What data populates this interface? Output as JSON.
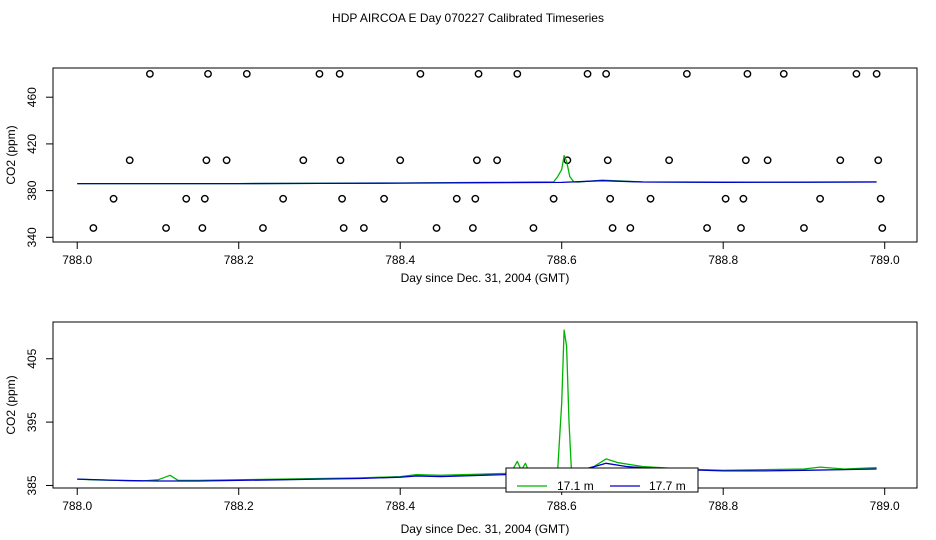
{
  "title": "HDP AIRCOA E  Day 070227  Calibrated Timeseries",
  "colors": {
    "green": "#00b300",
    "blue": "#0000cc",
    "axis": "#000000"
  },
  "chart_data": [
    {
      "type": "scatter",
      "xlabel": "Day since Dec. 31, 2004 (GMT)",
      "ylabel": "CO2 (ppm)",
      "xlim": [
        787.97,
        789.04
      ],
      "ylim": [
        336,
        485
      ],
      "xticks": [
        788.0,
        788.2,
        788.4,
        788.6,
        788.8,
        789.0
      ],
      "xtick_labels": [
        "788.0",
        "788.2",
        "788.4",
        "788.6",
        "788.8",
        "789.0"
      ],
      "yticks": [
        340,
        380,
        420,
        460
      ],
      "ytick_labels": [
        "340",
        "380",
        "420",
        "460"
      ],
      "grid": false,
      "series": [
        {
          "kind": "points",
          "color": "#000000",
          "x": [
            788.02,
            788.045,
            788.065,
            788.09,
            788.11,
            788.135,
            788.155,
            788.158,
            788.16,
            788.162,
            788.185,
            788.21,
            788.23,
            788.255,
            788.28,
            788.3,
            788.325,
            788.326,
            788.328,
            788.33,
            788.355,
            788.38,
            788.4,
            788.425,
            788.445,
            788.47,
            788.49,
            788.493,
            788.495,
            788.497,
            788.52,
            788.545,
            788.565,
            788.59,
            788.607,
            788.632,
            788.655,
            788.657,
            788.66,
            788.663,
            788.685,
            788.71,
            788.733,
            788.755,
            788.78,
            788.803,
            788.822,
            788.825,
            788.828,
            788.83,
            788.855,
            788.875,
            788.9,
            788.92,
            788.945,
            788.965,
            788.99,
            788.992,
            788.995,
            788.997
          ],
          "y": [
            348,
            373,
            406,
            480,
            348,
            373,
            348,
            373,
            406,
            480,
            406,
            480,
            348,
            373,
            406,
            480,
            480,
            406,
            373,
            348,
            348,
            373,
            406,
            480,
            348,
            373,
            348,
            373,
            406,
            480,
            406,
            480,
            348,
            373,
            406,
            480,
            480,
            406,
            373,
            348,
            348,
            373,
            406,
            480,
            348,
            373,
            348,
            373,
            406,
            480,
            406,
            480,
            348,
            373,
            406,
            480,
            480,
            406,
            373,
            348
          ]
        },
        {
          "kind": "line",
          "color": "#00b300",
          "x": [
            788.0,
            788.1,
            788.2,
            788.3,
            788.4,
            788.5,
            788.55,
            788.59,
            788.595,
            788.6,
            788.603,
            788.606,
            788.61,
            788.615,
            788.62,
            788.65,
            788.7,
            788.8,
            788.9,
            788.99
          ],
          "y": [
            386,
            386,
            386,
            386.3,
            386.5,
            387,
            387.2,
            387.5,
            392,
            398,
            410,
            405,
            392,
            387.5,
            387.3,
            389,
            387.5,
            387.2,
            387.3,
            387.5
          ]
        },
        {
          "kind": "line",
          "color": "#0000cc",
          "x": [
            788.0,
            788.1,
            788.2,
            788.3,
            788.4,
            788.5,
            788.6,
            788.65,
            788.7,
            788.8,
            788.9,
            788.99
          ],
          "y": [
            386,
            386,
            386,
            386.2,
            386.4,
            386.8,
            387,
            388.5,
            387.4,
            387.1,
            387.2,
            387.4
          ]
        }
      ]
    },
    {
      "type": "line",
      "xlabel": "Day since Dec. 31, 2004 (GMT)",
      "ylabel": "CO2 (ppm)",
      "xlim": [
        787.97,
        789.04
      ],
      "ylim": [
        384.6,
        410.8
      ],
      "xticks": [
        788.0,
        788.2,
        788.4,
        788.6,
        788.8,
        789.0
      ],
      "xtick_labels": [
        "788.0",
        "788.2",
        "788.4",
        "788.6",
        "788.8",
        "789.0"
      ],
      "yticks": [
        385,
        395,
        405
      ],
      "ytick_labels": [
        "385",
        "395",
        "405"
      ],
      "grid": false,
      "legend_position": "bottom-center",
      "series": [
        {
          "name": "17.1 m",
          "color": "#00b300",
          "x": [
            788.0,
            788.02,
            788.05,
            788.08,
            788.1,
            788.115,
            788.125,
            788.15,
            788.2,
            788.25,
            788.3,
            788.35,
            788.4,
            788.42,
            788.45,
            788.5,
            788.53,
            788.54,
            788.545,
            788.55,
            788.555,
            788.56,
            788.58,
            788.595,
            788.6,
            788.603,
            788.606,
            788.609,
            788.612,
            788.62,
            788.64,
            788.655,
            788.67,
            788.7,
            788.75,
            788.8,
            788.85,
            788.9,
            788.92,
            788.95,
            788.99
          ],
          "y": [
            386.0,
            385.9,
            385.8,
            385.7,
            385.9,
            386.6,
            385.8,
            385.8,
            385.9,
            386.0,
            386.1,
            386.2,
            386.4,
            386.7,
            386.6,
            386.8,
            386.9,
            387.7,
            388.8,
            387.4,
            388.5,
            387.0,
            387.2,
            387.5,
            398.0,
            409.5,
            407.0,
            395.0,
            387.5,
            387.3,
            388.0,
            389.2,
            388.6,
            388.0,
            387.6,
            387.4,
            387.5,
            387.6,
            387.9,
            387.6,
            387.8
          ]
        },
        {
          "name": "17.7 m",
          "color": "#0000cc",
          "x": [
            788.0,
            788.05,
            788.1,
            788.15,
            788.2,
            788.25,
            788.3,
            788.35,
            788.4,
            788.42,
            788.45,
            788.5,
            788.55,
            788.6,
            788.63,
            788.655,
            788.68,
            788.7,
            788.75,
            788.8,
            788.85,
            788.9,
            788.95,
            788.99
          ],
          "y": [
            386.0,
            385.8,
            385.7,
            385.7,
            385.8,
            385.9,
            386.0,
            386.1,
            386.3,
            386.5,
            386.4,
            386.6,
            386.8,
            387.0,
            387.6,
            388.5,
            388.0,
            387.8,
            387.5,
            387.3,
            387.3,
            387.4,
            387.5,
            387.6
          ]
        }
      ]
    }
  ]
}
